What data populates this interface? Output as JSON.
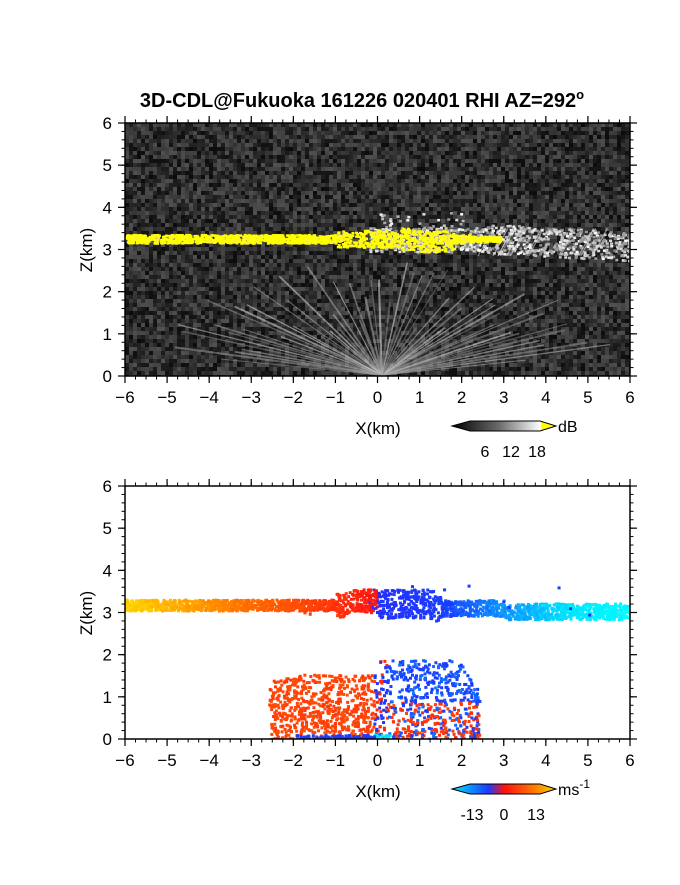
{
  "title": "3D-CDL@Fukuoka 161226 020401 RHI AZ=292",
  "title_sup": "o",
  "chart_data": [
    {
      "type": "heatmap",
      "panel": "reflectivity",
      "xlabel": "X(km)",
      "ylabel": "Z(km)",
      "xlim": [
        -6,
        6
      ],
      "ylim": [
        0,
        6
      ],
      "xticks": [
        "-6",
        "-5",
        "-4",
        "-3",
        "-2",
        "-1",
        "0",
        "1",
        "2",
        "3",
        "4",
        "5",
        "6"
      ],
      "yticks": [
        "0",
        "1",
        "2",
        "3",
        "4",
        "5",
        "6"
      ],
      "colorbar": {
        "unit": "dB",
        "ticks": [
          "6",
          "12",
          "18"
        ],
        "range": [
          0,
          20
        ]
      },
      "features": [
        {
          "name": "cloud layer (strong echo)",
          "x": [
            -6.0,
            3.0
          ],
          "z": [
            3.0,
            3.4
          ],
          "level": "above 18 dB"
        },
        {
          "name": "cloud layer (weak echo)",
          "x": [
            0.0,
            6.0
          ],
          "z": [
            2.7,
            3.7
          ],
          "level": "6-18 dB"
        },
        {
          "name": "near-ground fan",
          "x": [
            -3.0,
            3.0
          ],
          "z": [
            0.0,
            2.0
          ],
          "level": "6-12 dB"
        }
      ]
    },
    {
      "type": "heatmap",
      "panel": "doppler velocity",
      "xlabel": "X(km)",
      "ylabel": "Z(km)",
      "xlim": [
        -6,
        6
      ],
      "ylim": [
        0,
        6
      ],
      "xticks": [
        "-6",
        "-5",
        "-4",
        "-3",
        "-2",
        "-1",
        "0",
        "1",
        "2",
        "3",
        "4",
        "5",
        "6"
      ],
      "yticks": [
        "0",
        "1",
        "2",
        "3",
        "4",
        "5",
        "6"
      ],
      "colorbar": {
        "unit": "ms",
        "unit_sup": "-1",
        "ticks": [
          "-13",
          "0",
          "13"
        ],
        "range": [
          -16,
          16
        ]
      },
      "features": [
        {
          "name": "cloud layer",
          "x": [
            -6.0,
            6.0
          ],
          "z": [
            2.7,
            3.7
          ],
          "velocity": "from +13 at x=-6 to -13 at x=6"
        },
        {
          "name": "low-level echo",
          "x": [
            -2.7,
            2.5
          ],
          "z": [
            0.0,
            1.9
          ],
          "velocity": "about +3 to +5 west of 0, about -5 to -8 east of 0"
        }
      ],
      "colors": {
        "neg_strong": "#00e5ff",
        "neg_mid": "#1a3cff",
        "zero": "#ff1010",
        "pos_mid": "#ff6a00",
        "pos_strong": "#ffd400"
      }
    }
  ]
}
